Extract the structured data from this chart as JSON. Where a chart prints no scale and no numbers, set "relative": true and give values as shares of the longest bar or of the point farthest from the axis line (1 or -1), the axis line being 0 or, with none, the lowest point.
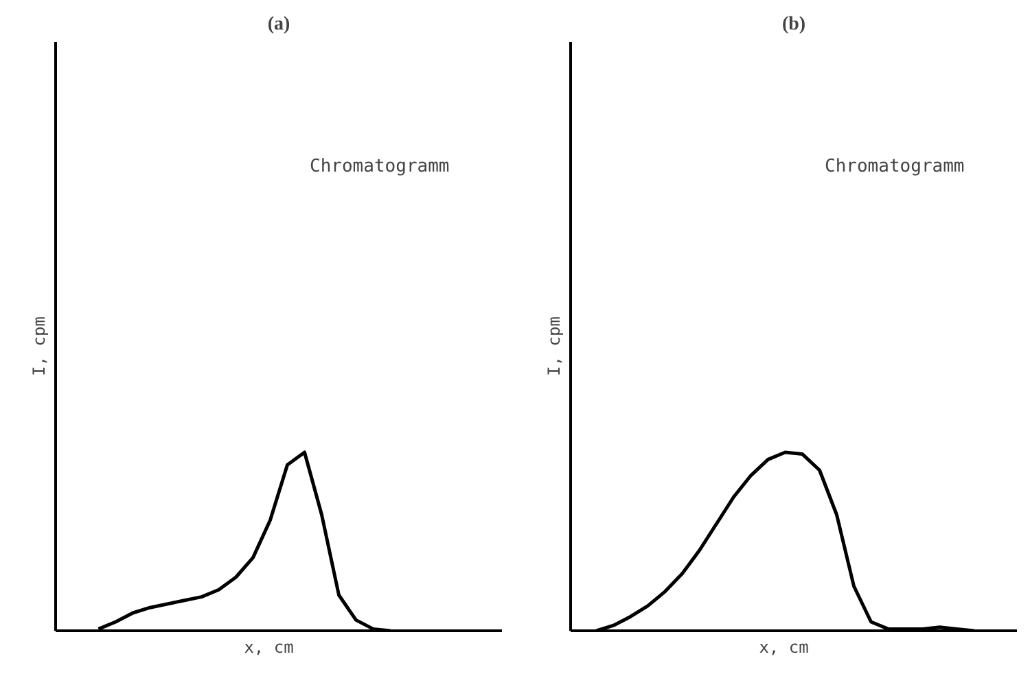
{
  "chart_data": [
    {
      "type": "line",
      "title": "(a)",
      "xlabel": "x,   cm",
      "ylabel": "I,   cpm",
      "relative": true,
      "annotations": [
        "Chromatogramm"
      ],
      "categories": [
        null,
        null,
        null,
        null,
        null,
        null,
        null,
        null,
        null,
        null,
        null,
        null,
        null,
        null,
        null,
        null,
        null,
        null,
        null,
        null,
        null,
        null,
        null,
        null,
        null,
        null
      ],
      "series": [
        {
          "color": "#000000",
          "values": [
            null,
            null,
            0.01,
            0.05,
            0.1,
            0.13,
            0.15,
            0.17,
            0.19,
            0.23,
            0.3,
            0.41,
            0.62,
            0.93,
            1.0,
            0.65,
            0.2,
            0.06,
            0.01,
            0,
            null,
            null,
            null,
            null,
            null,
            null
          ]
        }
      ]
    },
    {
      "type": "line",
      "title": "(b)",
      "xlabel": "x,   cm",
      "ylabel": "I,   cpm",
      "relative": true,
      "annotations": [
        "Chromatogramm"
      ],
      "categories": [
        null,
        null,
        null,
        null,
        null,
        null,
        null,
        null,
        null,
        null,
        null,
        null,
        null,
        null,
        null,
        null,
        null,
        null,
        null,
        null,
        null,
        null,
        null,
        null,
        null,
        null
      ],
      "series": [
        {
          "color": "#000000",
          "values": [
            null,
            0,
            0.03,
            0.08,
            0.14,
            0.22,
            0.32,
            0.45,
            0.6,
            0.75,
            0.87,
            0.96,
            1.0,
            0.99,
            0.9,
            0.65,
            0.25,
            0.05,
            0.01,
            0.01,
            0.01,
            0.02,
            0.01,
            0,
            null,
            null
          ]
        }
      ]
    }
  ]
}
